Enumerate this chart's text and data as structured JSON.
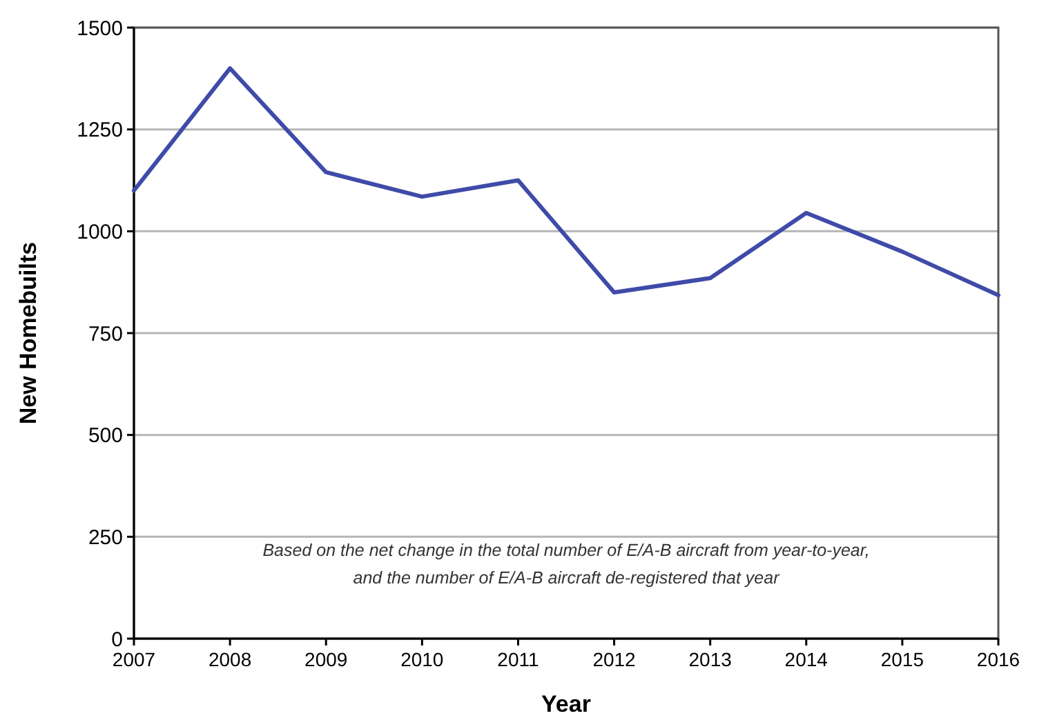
{
  "chart_data": {
    "type": "line",
    "xlabel": "Year",
    "ylabel": "New Homebuilts",
    "x": [
      2007,
      2008,
      2009,
      2010,
      2011,
      2012,
      2013,
      2014,
      2015,
      2016
    ],
    "series": [
      {
        "color": "#3f4ba8",
        "values": [
          1100,
          1400,
          1145,
          1085,
          1125,
          850,
          885,
          1045,
          950,
          843
        ]
      }
    ],
    "xlim": [
      2007,
      2016
    ],
    "xticks": [
      2007,
      2008,
      2009,
      2010,
      2011,
      2012,
      2013,
      2014,
      2015,
      2016
    ],
    "ylim": [
      0,
      1500
    ],
    "yticks": [
      0,
      250,
      500,
      750,
      1000,
      1250,
      1500
    ],
    "grid": "y",
    "marker": "none",
    "line_style": "solid",
    "annotations": [
      "Based on the net change in the total number of E/A-B aircraft from year-to-year,",
      "and the number of E/A-B aircraft de-registered that year"
    ]
  }
}
